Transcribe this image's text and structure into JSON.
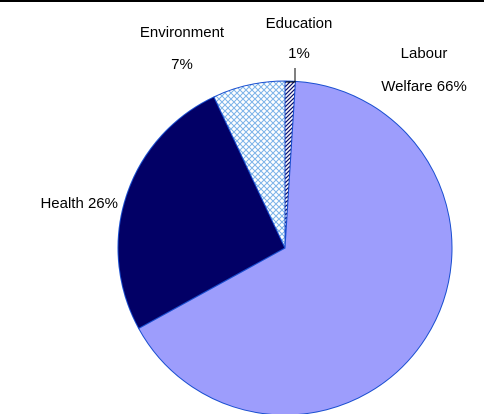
{
  "chart_data": {
    "type": "pie",
    "start_angle_deg": -90,
    "direction": "clockwise",
    "slices": [
      {
        "name": "Education",
        "value": 1,
        "label_lines": [
          "Education",
          "1%"
        ],
        "fill": "#ffffff",
        "pattern": "diagonal-hatch",
        "pattern_color": "#0b0f6a"
      },
      {
        "name": "Labour Welfare",
        "value": 66,
        "label_lines": [
          "Labour",
          "Welfare 66%"
        ],
        "fill": "#9d9dfc",
        "pattern": "none",
        "pattern_color": ""
      },
      {
        "name": "Health",
        "value": 26,
        "label_lines": [
          "Health 26%"
        ],
        "fill": "#020066",
        "pattern": "none",
        "pattern_color": ""
      },
      {
        "name": "Environment",
        "value": 7,
        "label_lines": [
          "Environment",
          "7%"
        ],
        "fill": "#ffffff",
        "pattern": "crosshatch",
        "pattern_color": "#7bb2e8"
      }
    ],
    "slice_edge_color": "#1a4fd0",
    "legend": "none"
  }
}
